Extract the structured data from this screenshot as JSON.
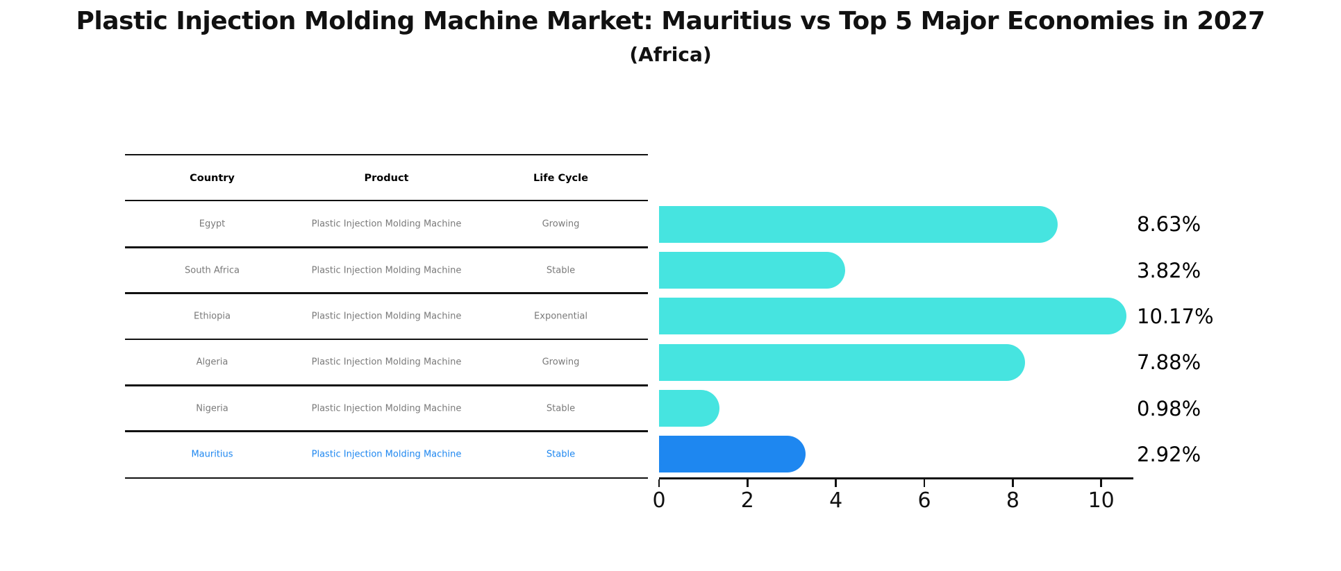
{
  "title": "Plastic Injection Molding Machine Market: Mauritius vs Top 5 Major Economies in 2027",
  "subtitle": "(Africa)",
  "table": {
    "headers": [
      "Country",
      "Product",
      "Life Cycle"
    ],
    "rows": [
      {
        "country": "Egypt",
        "product": "Plastic Injection Molding Machine",
        "life_cycle": "Growing",
        "highlight": false
      },
      {
        "country": "South Africa",
        "product": "Plastic Injection Molding Machine",
        "life_cycle": "Stable",
        "highlight": false
      },
      {
        "country": "Ethiopia",
        "product": "Plastic Injection Molding Machine",
        "life_cycle": "Exponential",
        "highlight": false
      },
      {
        "country": "Algeria",
        "product": "Plastic Injection Molding Machine",
        "life_cycle": "Growing",
        "highlight": false
      },
      {
        "country": "Nigeria",
        "product": "Plastic Injection Molding Machine",
        "life_cycle": "Stable",
        "highlight": false
      },
      {
        "country": "Mauritius",
        "product": "Plastic Injection Molding Machine",
        "life_cycle": "Stable",
        "highlight": true
      }
    ]
  },
  "chart_data": {
    "type": "bar",
    "orientation": "horizontal",
    "title": "Plastic Injection Molding Machine Market: Mauritius vs Top 5 Major Economies in 2027 (Africa)",
    "categories": [
      "Egypt",
      "South Africa",
      "Ethiopia",
      "Algeria",
      "Nigeria",
      "Mauritius"
    ],
    "values": [
      8.63,
      3.82,
      10.17,
      7.88,
      0.98,
      2.92
    ],
    "value_labels": [
      "8.63%",
      "3.82%",
      "10.17%",
      "7.88%",
      "0.98%",
      "2.92%"
    ],
    "xlabel": "",
    "ylabel": "",
    "xticks": [
      0,
      2,
      4,
      6,
      8,
      10
    ],
    "xlim": [
      0,
      10.7
    ],
    "grid": false,
    "legend": false,
    "bar_color": "#46e4e0",
    "highlight_color": "#1e87f0",
    "highlight_index": 5,
    "highlight_border_style": "dotted",
    "text_color": "#000000",
    "line_color": "#111111",
    "row_text_color": "#7a7a7a"
  }
}
